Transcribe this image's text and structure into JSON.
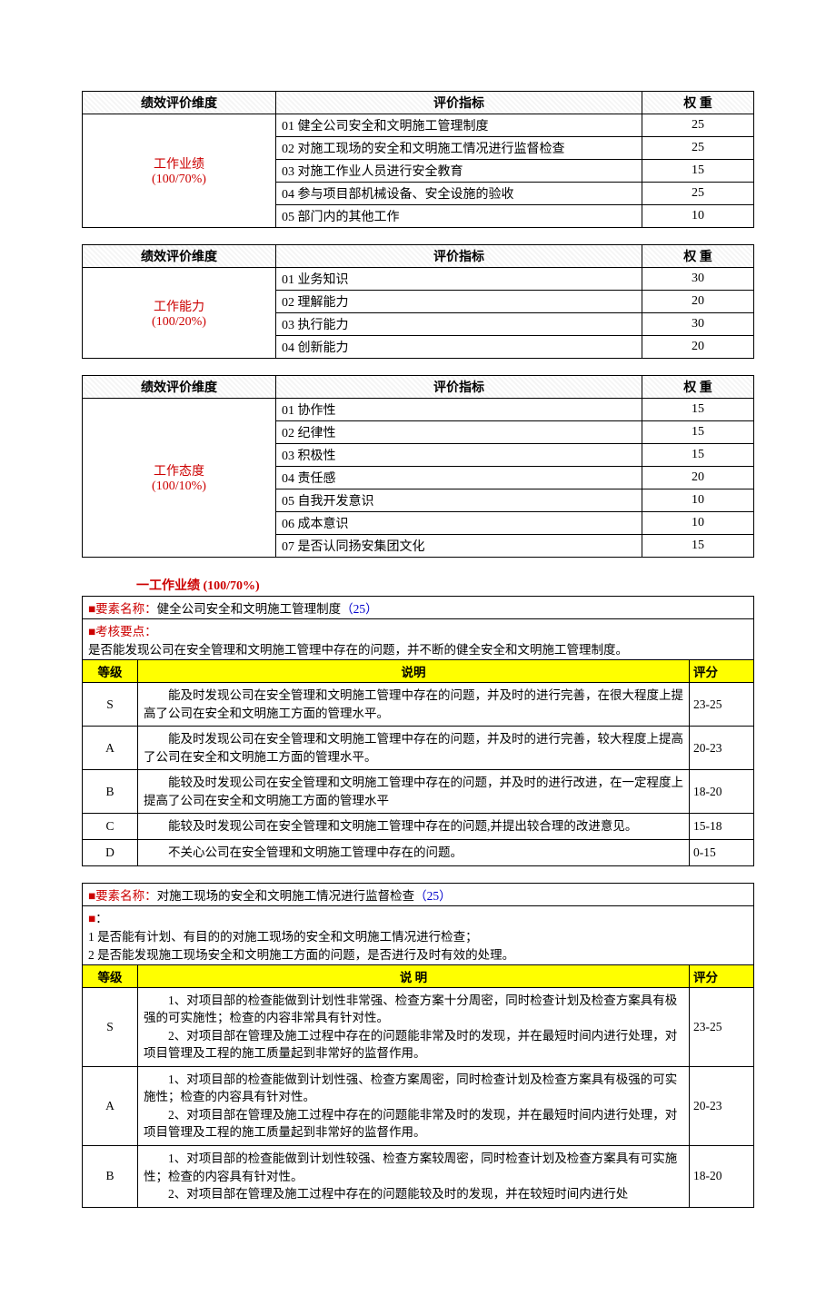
{
  "summary_tables": {
    "headers": {
      "dim": "绩效评价维度",
      "indicator": "评价指标",
      "weight": "权 重"
    },
    "tables": [
      {
        "dimension": "工作业绩",
        "ratio": "(100/70%)",
        "rows": [
          {
            "idx": "01",
            "name": "健全公司安全和文明施工管理制度",
            "weight": "25"
          },
          {
            "idx": "02",
            "name": "对施工现场的安全和文明施工情况进行监督检查",
            "weight": "25"
          },
          {
            "idx": "03",
            "name": "对施工作业人员进行安全教育",
            "weight": "15"
          },
          {
            "idx": "04",
            "name": "参与项目部机械设备、安全设施的验收",
            "weight": "25"
          },
          {
            "idx": "05",
            "name": "部门内的其他工作",
            "weight": "10"
          }
        ]
      },
      {
        "dimension": "工作能力",
        "ratio": "(100/20%)",
        "rows": [
          {
            "idx": "01",
            "name": "业务知识",
            "weight": "30"
          },
          {
            "idx": "02",
            "name": "理解能力",
            "weight": "20"
          },
          {
            "idx": "03",
            "name": "执行能力",
            "weight": "30"
          },
          {
            "idx": "04",
            "name": "创新能力",
            "weight": "20"
          }
        ]
      },
      {
        "dimension": "工作态度",
        "ratio": "(100/10%)",
        "rows": [
          {
            "idx": "01",
            "name": "协作性",
            "weight": "15"
          },
          {
            "idx": "02",
            "name": "纪律性",
            "weight": "15"
          },
          {
            "idx": "03",
            "name": "积极性",
            "weight": "15"
          },
          {
            "idx": "04",
            "name": "责任感",
            "weight": "20"
          },
          {
            "idx": "05",
            "name": "自我开发意识",
            "weight": "10"
          },
          {
            "idx": "06",
            "name": "成本意识",
            "weight": "10"
          },
          {
            "idx": "07",
            "name": "是否认同扬安集团文化",
            "weight": "15"
          }
        ]
      }
    ]
  },
  "section1": {
    "title": "一工作业绩 (100/70%)",
    "rubric1": {
      "element_label": "■要素名称：",
      "element_name": "健全公司安全和文明施工管理制度",
      "element_weight": "（25）",
      "points_label": "■考核要点：",
      "points_text": "是否能发现公司在安全管理和文明施工管理中存在的问题，并不断的健全安全和文明施工管理制度。",
      "col_grade": "等级",
      "col_desc": "说明",
      "col_score": "评分",
      "rows": [
        {
          "g": "S",
          "d": "　　能及时发现公司在安全管理和文明施工管理中存在的问题，并及时的进行完善，在很大程度上提高了公司在安全和文明施工方面的管理水平。",
          "s": "23-25"
        },
        {
          "g": "A",
          "d": "　　能及时发现公司在安全管理和文明施工管理中存在的问题，并及时的进行完善，较大程度上提高了公司在安全和文明施工方面的管理水平。",
          "s": "20-23"
        },
        {
          "g": "B",
          "d": "　　能较及时发现公司在安全管理和文明施工管理中存在的问题，并及时的进行改进，在一定程度上提高了公司在安全和文明施工方面的管理水平",
          "s": "18-20"
        },
        {
          "g": "C",
          "d": "　　能较及时发现公司在安全管理和文明施工管理中存在的问题,并提出较合理的改进意见。",
          "s": "15-18"
        },
        {
          "g": "D",
          "d": "　　不关心公司在安全管理和文明施工管理中存在的问题。",
          "s": "0-15"
        }
      ]
    },
    "rubric2": {
      "element_label": "■要素名称：",
      "element_name": "对施工现场的安全和文明施工情况进行监督检查",
      "element_weight": "（25）",
      "points_prefix": "■",
      "points_colon": "：",
      "points_line1": "1 是否能有计划、有目的的对施工现场的安全和文明施工情况进行检查；",
      "points_line2": "2 是否能发现施工现场安全和文明施工方面的问题，是否进行及时有效的处理。",
      "col_grade": "等级",
      "col_desc": "说  明",
      "col_score": "评分",
      "rows": [
        {
          "g": "S",
          "d": "　　1、对项目部的检查能做到计划性非常强、检查方案十分周密，同时检查计划及检查方案具有极强的可实施性；检查的内容非常具有针对性。\n　　2、对项目部在管理及施工过程中存在的问题能非常及时的发现，并在最短时间内进行处理，对项目管理及工程的施工质量起到非常好的监督作用。",
          "s": "23-25"
        },
        {
          "g": "A",
          "d": "　　1、对项目部的检查能做到计划性强、检查方案周密，同时检查计划及检查方案具有极强的可实施性；检查的内容具有针对性。\n　　2、对项目部在管理及施工过程中存在的问题能非常及时的发现，并在最短时间内进行处理，对项目管理及工程的施工质量起到非常好的监督作用。",
          "s": "20-23"
        },
        {
          "g": "B",
          "d": "　　1、对项目部的检查能做到计划性较强、检查方案较周密，同时检查计划及检查方案具有可实施性；检查的内容具有针对性。\n　　2、对项目部在管理及施工过程中存在的问题能较及时的发现，并在较短时间内进行处",
          "s": "18-20"
        }
      ]
    }
  }
}
